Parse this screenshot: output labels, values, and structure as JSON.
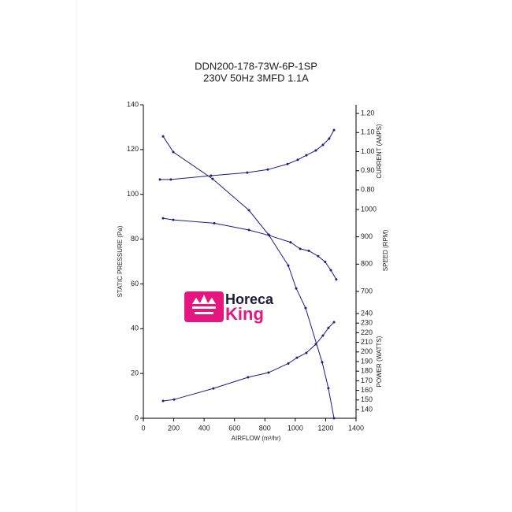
{
  "chart_data": {
    "type": "line",
    "title": "DDN200-178-73W-6P-1SP",
    "subtitle": "230V 50Hz 3MFD 1.1A",
    "xlabel": "AIRFLOW (m³/hr)",
    "ylabel": "STATIC PRESSURE (Pa)",
    "y2label": "CURRENT (AMPS)",
    "y3label": "SPEED (RPM)",
    "y4label": "POWER (WATTS)",
    "xlim": [
      0,
      1400
    ],
    "xticks": [
      0,
      200,
      400,
      600,
      800,
      1000,
      1200,
      1400
    ],
    "ylim": [
      0,
      140
    ],
    "yticks": [
      0,
      20,
      40,
      60,
      80,
      100,
      120,
      140
    ],
    "y2lim": [
      0.8,
      1.2
    ],
    "y2ticks": [
      {
        "value": 0.8,
        "label": "0.80"
      },
      {
        "value": 0.9,
        "label": "0.90"
      },
      {
        "value": 1.0,
        "label": "1.00"
      },
      {
        "value": 1.1,
        "label": "1.10"
      },
      {
        "value": 1.2,
        "label": "1.20"
      }
    ],
    "y3lim": [
      700,
      1000
    ],
    "y3ticks": [
      700,
      800,
      900,
      1000
    ],
    "y4lim": [
      140,
      240
    ],
    "y4ticks": [
      140,
      150,
      160,
      170,
      180,
      190,
      200,
      210,
      220,
      230,
      240
    ],
    "color": "#1c1c84",
    "series": [
      {
        "axis": "y",
        "x": [
          130,
          197,
          456,
          695,
          824,
          954,
          1006,
          1068,
          1177,
          1218,
          1255
        ],
        "values": [
          125.9,
          118.9,
          106.9,
          92.9,
          82,
          68.2,
          58,
          49.2,
          25,
          13.4,
          0
        ]
      },
      {
        "axis": "y2",
        "x": [
          109,
          181,
          446,
          684,
          819,
          949,
          1016,
          1073,
          1135,
          1182,
          1223,
          1255
        ],
        "values": [
          0.854,
          0.854,
          0.874,
          0.89,
          0.906,
          0.935,
          0.957,
          0.981,
          1.006,
          1.035,
          1.068,
          1.113
        ]
      },
      {
        "axis": "y3",
        "x": [
          130,
          197,
          467,
          695,
          829,
          969,
          1032,
          1089,
          1151,
          1197,
          1234,
          1270
        ],
        "values": [
          968,
          962,
          950,
          925,
          905,
          880,
          856,
          849,
          829,
          808,
          778,
          744
        ]
      },
      {
        "axis": "y4",
        "x": [
          130,
          202,
          461,
          689,
          824,
          954,
          1011,
          1073,
          1135,
          1182,
          1218,
          1255
        ],
        "values": [
          149,
          150.5,
          162,
          173.6,
          178.5,
          188,
          194,
          199,
          208,
          217,
          225,
          231
        ]
      }
    ]
  },
  "logo": {
    "line1": "Horeca",
    "line2": "King"
  }
}
